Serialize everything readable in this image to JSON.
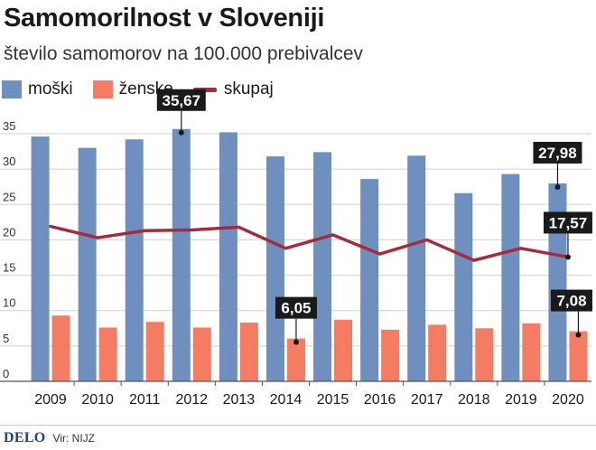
{
  "header": {
    "title": "Samomorilnost v Sloveniji",
    "subtitle": "število samomorov na 100.000 prebivalcev"
  },
  "legend": {
    "moski": "moški",
    "zenske": "ženske",
    "skupaj": "skupaj"
  },
  "colors": {
    "moski": "#6f8fbe",
    "zenske": "#f47c62",
    "skupaj": "#a62b3c",
    "grid": "#cfcfcf",
    "annotation_bg": "#1a1a1a"
  },
  "chart_data": {
    "type": "bar",
    "categories": [
      "2009",
      "2010",
      "2011",
      "2012",
      "2013",
      "2014",
      "2015",
      "2016",
      "2017",
      "2018",
      "2019",
      "2020"
    ],
    "series": [
      {
        "name": "moški",
        "type": "bar",
        "values": [
          34.6,
          33.0,
          34.2,
          35.67,
          35.2,
          31.8,
          32.4,
          28.6,
          31.9,
          26.6,
          29.3,
          27.98
        ]
      },
      {
        "name": "ženske",
        "type": "bar",
        "values": [
          9.3,
          7.6,
          8.4,
          7.6,
          8.3,
          6.05,
          8.7,
          7.3,
          8.0,
          7.5,
          8.2,
          7.08
        ]
      },
      {
        "name": "skupaj",
        "type": "line",
        "values": [
          21.9,
          20.3,
          21.3,
          21.4,
          21.8,
          18.8,
          20.7,
          18.0,
          20.0,
          17.1,
          18.8,
          17.57
        ]
      }
    ],
    "yticks": [
      0,
      5,
      10,
      15,
      20,
      25,
      30,
      35
    ],
    "ylim": [
      0,
      37
    ],
    "grid": true,
    "legend_position": "top-left",
    "annotations": [
      {
        "label": "35,67",
        "series": 0,
        "index": 3
      },
      {
        "label": "6,05",
        "series": 1,
        "index": 5
      },
      {
        "label": "27,98",
        "series": 0,
        "index": 11
      },
      {
        "label": "17,57",
        "series": 2,
        "index": 11
      },
      {
        "label": "7,08",
        "series": 1,
        "index": 11
      }
    ]
  },
  "footer": {
    "brand": "DELO",
    "source": "Vir: NIJZ"
  }
}
